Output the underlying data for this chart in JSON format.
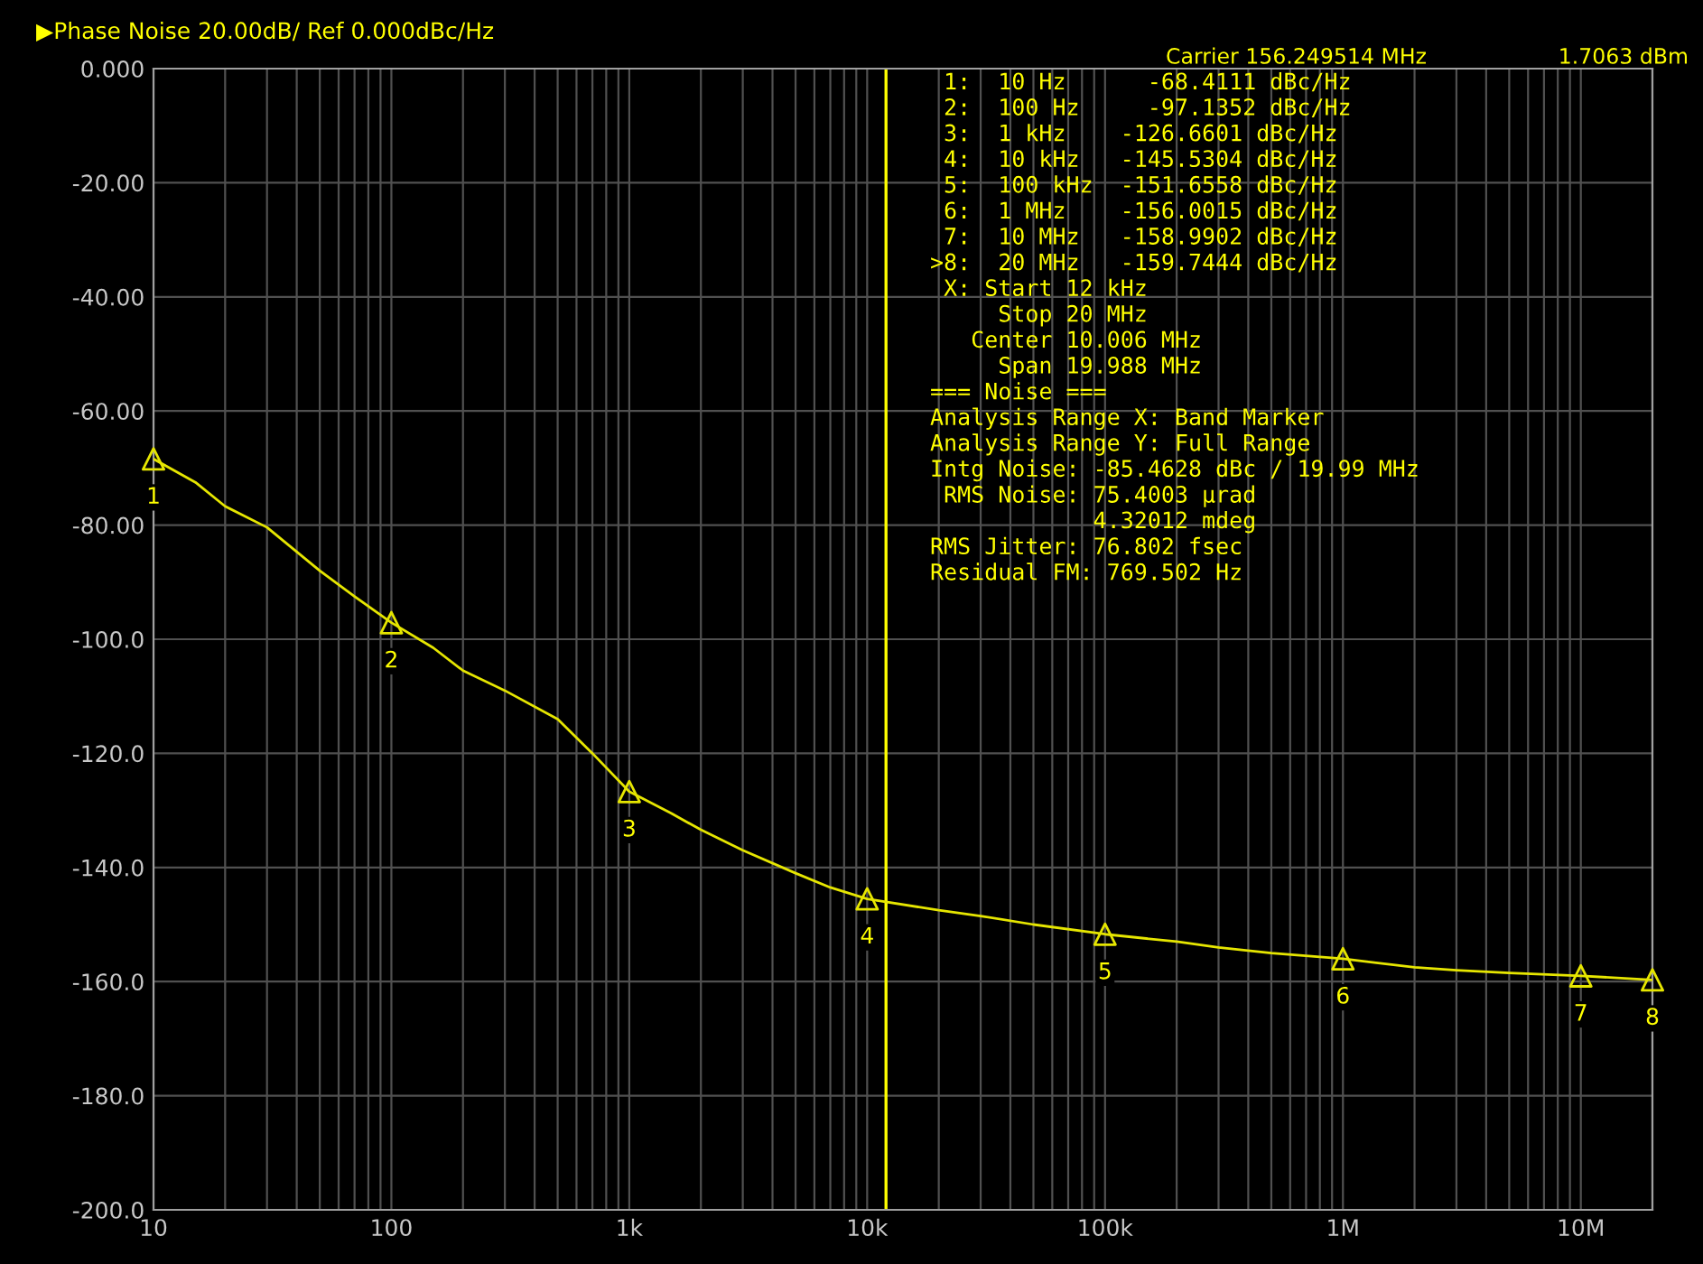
{
  "chart_data": {
    "type": "line",
    "title": "▶Phase Noise 20.00dB/ Ref 0.000dBc/Hz",
    "annotations": [
      "Carrier 156.249514 MHz",
      "1.7063 dBm",
      " 1:  10 Hz      -68.4111 dBc/Hz",
      " 2:  100 Hz     -97.1352 dBc/Hz",
      " 3:  1 kHz    -126.6601 dBc/Hz",
      " 4:  10 kHz   -145.5304 dBc/Hz",
      " 5:  100 kHz  -151.6558 dBc/Hz",
      " 6:  1 MHz    -156.0015 dBc/Hz",
      " 7:  10 MHz   -158.9902 dBc/Hz",
      ">8:  20 MHz   -159.7444 dBc/Hz",
      " X: Start 12 kHz",
      "     Stop 20 MHz",
      "   Center 10.006 MHz",
      "     Span 19.988 MHz",
      "=== Noise ===",
      "Analysis Range X: Band Marker",
      "Analysis Range Y: Full Range",
      "Intg Noise: -85.4628 dBc / 19.99 MHz",
      " RMS Noise: 75.4003 µrad",
      "            4.32012 mdeg",
      "RMS Jitter: 76.802 fsec",
      "Residual FM: 769.502 Hz",
      {
        "text": "1",
        "x": 10,
        "y": -68.4
      },
      {
        "text": "2",
        "x": 100,
        "y": -97.1
      },
      {
        "text": "3",
        "x": 1000,
        "y": -126.7
      },
      {
        "text": "4",
        "x": 10000,
        "y": -145.5
      },
      {
        "text": "5",
        "x": 100000,
        "y": -151.7
      },
      {
        "text": "6",
        "x": 1000000,
        "y": -156.0
      },
      {
        "text": "7",
        "x": 10000000,
        "y": -159.0
      },
      {
        "text": "8",
        "x": 20000000,
        "y": -159.7
      }
    ],
    "log": "x",
    "grid": true,
    "legend": false,
    "xlim": [
      10,
      20000000
    ],
    "xticks": [
      {
        "value": 10,
        "label": "10"
      },
      {
        "value": 20,
        "label": null
      },
      {
        "value": 30,
        "label": null
      },
      {
        "value": 40,
        "label": null
      },
      {
        "value": 50,
        "label": null
      },
      {
        "value": 60,
        "label": null
      },
      {
        "value": 70,
        "label": null
      },
      {
        "value": 80,
        "label": null
      },
      {
        "value": 90,
        "label": null
      },
      {
        "value": 100,
        "label": "100"
      },
      {
        "value": 200,
        "label": null
      },
      {
        "value": 300,
        "label": null
      },
      {
        "value": 400,
        "label": null
      },
      {
        "value": 500,
        "label": null
      },
      {
        "value": 600,
        "label": null
      },
      {
        "value": 700,
        "label": null
      },
      {
        "value": 800,
        "label": null
      },
      {
        "value": 900,
        "label": null
      },
      {
        "value": 1000,
        "label": "1k"
      },
      {
        "value": 2000,
        "label": null
      },
      {
        "value": 3000,
        "label": null
      },
      {
        "value": 4000,
        "label": null
      },
      {
        "value": 5000,
        "label": null
      },
      {
        "value": 6000,
        "label": null
      },
      {
        "value": 7000,
        "label": null
      },
      {
        "value": 8000,
        "label": null
      },
      {
        "value": 9000,
        "label": null
      },
      {
        "value": 10000,
        "label": "10k"
      },
      {
        "value": 20000,
        "label": null
      },
      {
        "value": 30000,
        "label": null
      },
      {
        "value": 40000,
        "label": null
      },
      {
        "value": 50000,
        "label": null
      },
      {
        "value": 60000,
        "label": null
      },
      {
        "value": 70000,
        "label": null
      },
      {
        "value": 80000,
        "label": null
      },
      {
        "value": 90000,
        "label": null
      },
      {
        "value": 100000,
        "label": "100k"
      },
      {
        "value": 200000,
        "label": null
      },
      {
        "value": 300000,
        "label": null
      },
      {
        "value": 400000,
        "label": null
      },
      {
        "value": 500000,
        "label": null
      },
      {
        "value": 600000,
        "label": null
      },
      {
        "value": 700000,
        "label": null
      },
      {
        "value": 800000,
        "label": null
      },
      {
        "value": 900000,
        "label": null
      },
      {
        "value": 1000000,
        "label": "1M"
      },
      {
        "value": 2000000,
        "label": null
      },
      {
        "value": 3000000,
        "label": null
      },
      {
        "value": 4000000,
        "label": null
      },
      {
        "value": 5000000,
        "label": null
      },
      {
        "value": 6000000,
        "label": null
      },
      {
        "value": 7000000,
        "label": null
      },
      {
        "value": 8000000,
        "label": null
      },
      {
        "value": 9000000,
        "label": null
      },
      {
        "value": 10000000,
        "label": "10M"
      },
      {
        "value": 20000000,
        "label": null
      }
    ],
    "ylim": [
      -200,
      0
    ],
    "yticks": [
      {
        "value": 0,
        "label": "0.000"
      },
      {
        "value": -20,
        "label": "-20.00"
      },
      {
        "value": -40,
        "label": "-40.00"
      },
      {
        "value": -60,
        "label": "-60.00"
      },
      {
        "value": -80,
        "label": "-80.00"
      },
      {
        "value": -100,
        "label": "-100.0"
      },
      {
        "value": -120,
        "label": "-120.0"
      },
      {
        "value": -140,
        "label": "-140.0"
      },
      {
        "value": -160,
        "label": "-160.0"
      },
      {
        "value": -180,
        "label": "-180.0"
      },
      {
        "value": -200,
        "label": "-200.0"
      }
    ],
    "ref_lines": [
      {
        "axis": "x",
        "value": 12000,
        "color": "#ffff00"
      }
    ],
    "series": [
      {
        "color": "#e6e600",
        "x": [
          10,
          15,
          20,
          30,
          50,
          70,
          100,
          150,
          200,
          300,
          500,
          700,
          1000,
          1500,
          2000,
          3000,
          5000,
          7000,
          10000,
          20000,
          30000,
          50000,
          100000,
          200000,
          300000,
          500000,
          1000000,
          2000000,
          3000000,
          5000000,
          10000000,
          20000000
        ],
        "values": [
          -68.4,
          -72.5,
          -76.7,
          -80.4,
          -88,
          -92.5,
          -97.1,
          -101.5,
          -105.5,
          -109,
          -114,
          -120,
          -126.7,
          -130.5,
          -133.4,
          -137,
          -141,
          -143.5,
          -145.5,
          -147.5,
          -148.5,
          -150,
          -151.7,
          -153,
          -154,
          -155,
          -156,
          -157.5,
          -158,
          -158.5,
          -159,
          -159.7
        ]
      },
      {
        "type": "scatter",
        "marker": "triangle",
        "color": "#e6e600",
        "x": [
          10,
          100,
          1000,
          10000,
          100000,
          1000000,
          10000000,
          20000000
        ],
        "values": [
          -68.4,
          -97.1,
          -126.7,
          -145.5,
          -151.7,
          -156.0,
          -159.0,
          -159.7
        ]
      }
    ]
  }
}
